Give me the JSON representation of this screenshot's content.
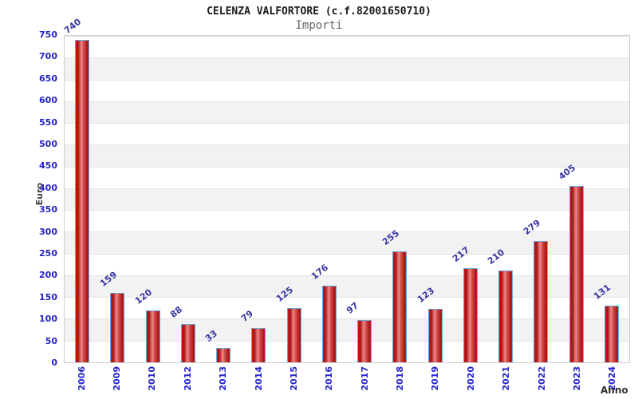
{
  "header": {
    "title": "CELENZA VALFORTORE (c.f.82001650710)",
    "subtitle": "Importi"
  },
  "chart_data": {
    "type": "bar",
    "title": "CELENZA VALFORTORE (c.f.82001650710)",
    "subtitle": "Importi",
    "xlabel": "Anno",
    "ylabel": "Euro",
    "categories": [
      "2006",
      "2009",
      "2010",
      "2012",
      "2013",
      "2014",
      "2015",
      "2016",
      "2017",
      "2018",
      "2019",
      "2020",
      "2021",
      "2022",
      "2023",
      "2024"
    ],
    "values": [
      740,
      159,
      120,
      88,
      33,
      79,
      125,
      176,
      97,
      255,
      123,
      217,
      210,
      279,
      405,
      131
    ],
    "ylim": [
      0,
      750
    ],
    "ytick_step": 50,
    "grid": true,
    "legend": "none",
    "bar_color_gradient": [
      "#a30f0f",
      "#f28a8a",
      "#c82222"
    ],
    "bar_border_color": "#6aa7dc",
    "value_label_color": "#3737a2",
    "tick_label_color": "#2323cc",
    "band_colors": [
      "#ffffff",
      "#f2f2f2"
    ],
    "plot_border_color": "#cfcfcf"
  }
}
